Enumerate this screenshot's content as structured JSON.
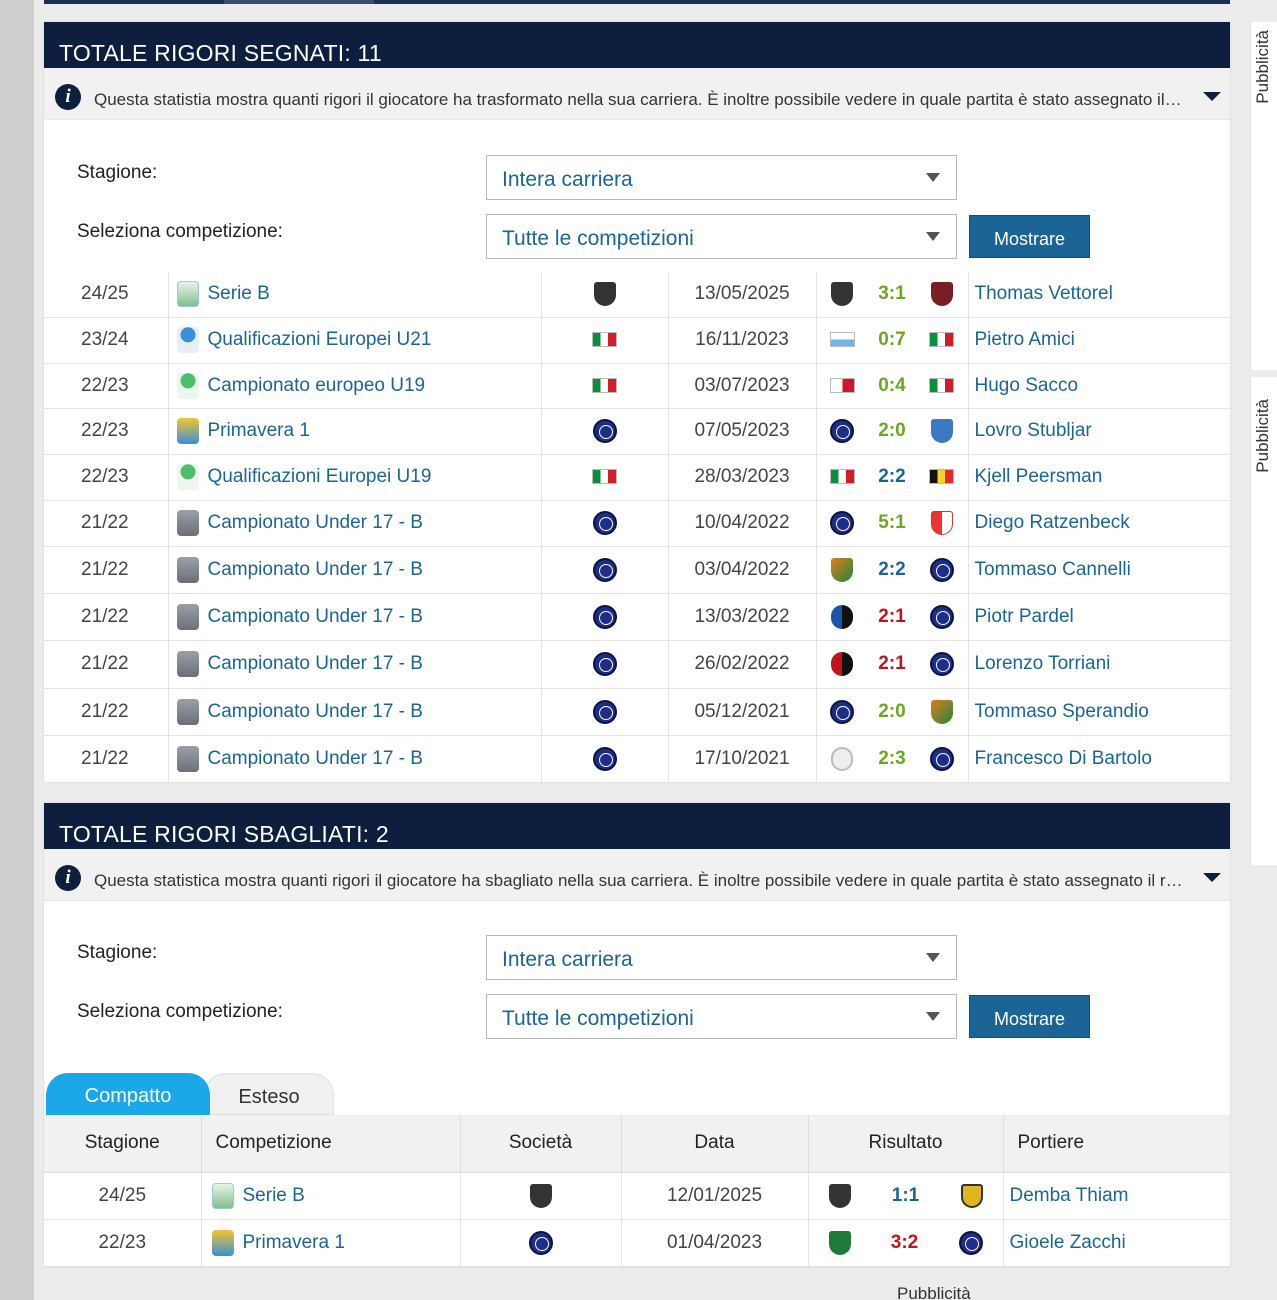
{
  "section1": {
    "title": "TOTALE RIGORI SEGNATI: 11",
    "info_text": "Questa statistia mostra quanti rigori il giocatore ha trasformato nella sua carriera. È inoltre possibile vedere in quale partita è stato assegnato il rigore e con quale risultato è terminata la partita.",
    "season_label": "Stagione:",
    "season_value": "Intera carriera",
    "competition_label": "Seleziona competizione:",
    "competition_value": "Tutte le competizioni",
    "button_label": "Mostrare",
    "rows": [
      {
        "season": "24/25",
        "competition": "Serie B",
        "comp_icon": "serieb",
        "club": "spezia",
        "date": "13/05/2025",
        "home": "spezia",
        "score": "3:1",
        "score_color": "green",
        "away": "salernitana",
        "keeper": "Thomas Vettorel"
      },
      {
        "season": "23/24",
        "competition": "Qualificazioni Europei U21",
        "comp_icon": "euro21",
        "club": "italy",
        "date": "16/11/2023",
        "home": "san-marino",
        "score": "0:7",
        "score_color": "green",
        "away": "italy",
        "keeper": "Pietro Amici"
      },
      {
        "season": "22/23",
        "competition": "Campionato europeo U19",
        "comp_icon": "euro19",
        "club": "italy",
        "date": "03/07/2023",
        "home": "malta",
        "score": "0:4",
        "score_color": "green",
        "away": "italy",
        "keeper": "Hugo Sacco"
      },
      {
        "season": "22/23",
        "competition": "Primavera 1",
        "comp_icon": "primavera",
        "club": "inter",
        "date": "07/05/2023",
        "home": "inter",
        "score": "2:0",
        "score_color": "green",
        "away": "empoli",
        "keeper": "Lovro Stubljar"
      },
      {
        "season": "22/23",
        "competition": "Qualificazioni Europei U19",
        "comp_icon": "euro19",
        "club": "italy",
        "date": "28/03/2023",
        "home": "italy",
        "score": "2:2",
        "score_color": "blue",
        "away": "belgium",
        "keeper": "Kjell Peersman"
      },
      {
        "season": "21/22",
        "competition": "Campionato Under 17 - B",
        "comp_icon": "u17",
        "club": "inter",
        "date": "10/04/2022",
        "home": "inter",
        "score": "5:1",
        "score_color": "green",
        "away": "sudtirol",
        "keeper": "Diego Ratzenbeck"
      },
      {
        "season": "21/22",
        "competition": "Campionato Under 17 - B",
        "comp_icon": "u17",
        "club": "inter",
        "date": "03/04/2022",
        "home": "venezia",
        "score": "2:2",
        "score_color": "blue",
        "away": "inter",
        "keeper": "Tommaso Cannelli"
      },
      {
        "season": "21/22",
        "competition": "Campionato Under 17 - B",
        "comp_icon": "u17",
        "club": "inter",
        "date": "13/03/2022",
        "home": "atalanta",
        "score": "2:1",
        "score_color": "red",
        "away": "inter",
        "keeper": "Piotr Pardel"
      },
      {
        "season": "21/22",
        "competition": "Campionato Under 17 - B",
        "comp_icon": "u17",
        "club": "inter",
        "date": "26/02/2022",
        "home": "milan",
        "score": "2:1",
        "score_color": "red",
        "away": "inter",
        "keeper": "Lorenzo Torriani"
      },
      {
        "season": "21/22",
        "competition": "Campionato Under 17 - B",
        "comp_icon": "u17",
        "club": "inter",
        "date": "05/12/2021",
        "home": "inter",
        "score": "2:0",
        "score_color": "green",
        "away": "venezia",
        "keeper": "Tommaso Sperandio"
      },
      {
        "season": "21/22",
        "competition": "Campionato Under 17 - B",
        "comp_icon": "u17",
        "club": "inter",
        "date": "17/10/2021",
        "home": "ascoli",
        "score": "2:3",
        "score_color": "green",
        "away": "inter",
        "keeper": "Francesco Di Bartolo"
      }
    ]
  },
  "section2": {
    "title": "TOTALE RIGORI SBAGLIATI: 2",
    "info_text": "Questa statistica mostra quanti rigori il giocatore ha sbagliato nella sua carriera. È inoltre possibile vedere in quale partita è stato assegnato il rigore e con quale risultato è terminata la partita.",
    "season_label": "Stagione:",
    "season_value": "Intera carriera",
    "competition_label": "Seleziona competizione:",
    "competition_value": "Tutte le competizioni",
    "button_label": "Mostrare",
    "tab_compact": "Compatto",
    "tab_extended": "Esteso",
    "columns": [
      "Stagione",
      "Competizione",
      "Società",
      "Data",
      "Risultato",
      "Portiere"
    ],
    "rows": [
      {
        "season": "24/25",
        "competition": "Serie B",
        "comp_icon": "serieb",
        "club": "spezia",
        "date": "12/01/2025",
        "home": "spezia",
        "score": "1:1",
        "score_color": "blue",
        "away": "juve-stabia",
        "keeper": "Demba Thiam"
      },
      {
        "season": "22/23",
        "competition": "Primavera 1",
        "comp_icon": "primavera",
        "club": "inter",
        "date": "01/04/2023",
        "home": "sassuolo",
        "score": "3:2",
        "score_color": "red",
        "away": "inter",
        "keeper": "Gioele Zacchi"
      }
    ]
  },
  "ads": {
    "label": "Pubblicità"
  }
}
